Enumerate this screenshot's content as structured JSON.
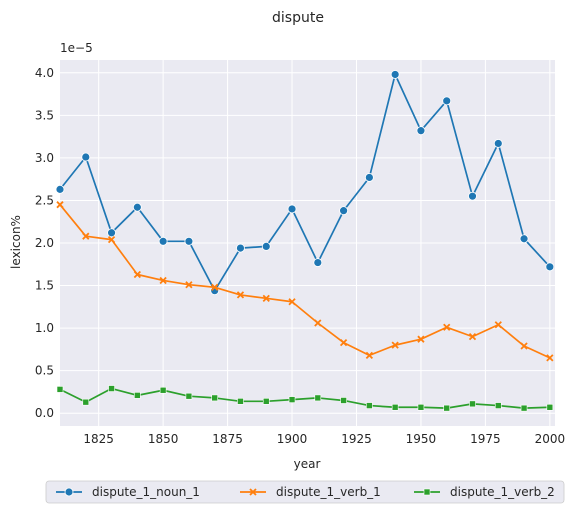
{
  "chart_data": {
    "type": "line",
    "title": "dispute",
    "xlabel": "year",
    "ylabel": "lexicon%",
    "y_scale_note": "1e−5",
    "xlim": [
      1810,
      2002
    ],
    "ylim": [
      -0.15,
      4.15
    ],
    "x_ticks": [
      1825,
      1850,
      1875,
      1900,
      1925,
      1950,
      1975,
      2000
    ],
    "y_ticks": [
      0.0,
      0.5,
      1.0,
      1.5,
      2.0,
      2.5,
      3.0,
      3.5,
      4.0
    ],
    "grid": true,
    "legend_position": "bottom",
    "x": [
      1810,
      1820,
      1830,
      1840,
      1850,
      1860,
      1870,
      1880,
      1890,
      1900,
      1910,
      1920,
      1930,
      1940,
      1950,
      1960,
      1970,
      1980,
      1990,
      2000
    ],
    "series": [
      {
        "name": "dispute_1_noun_1",
        "color": "#1f77b4",
        "marker": "circle",
        "values": [
          2.63,
          3.01,
          2.12,
          2.42,
          2.02,
          2.02,
          1.44,
          1.94,
          1.96,
          2.4,
          1.77,
          2.38,
          2.77,
          3.98,
          3.32,
          3.67,
          2.55,
          3.17,
          2.05,
          1.72
        ]
      },
      {
        "name": "dispute_1_verb_1",
        "color": "#ff7f0e",
        "marker": "x",
        "values": [
          2.45,
          2.08,
          2.04,
          1.63,
          1.56,
          1.51,
          1.48,
          1.39,
          1.35,
          1.31,
          1.06,
          0.83,
          0.68,
          0.8,
          0.87,
          1.01,
          0.9,
          1.04,
          0.79,
          0.65
        ]
      },
      {
        "name": "dispute_1_verb_2",
        "color": "#2ca02c",
        "marker": "square",
        "values": [
          0.28,
          0.13,
          0.29,
          0.21,
          0.27,
          0.2,
          0.18,
          0.14,
          0.14,
          0.16,
          0.18,
          0.15,
          0.09,
          0.07,
          0.07,
          0.06,
          0.11,
          0.09,
          0.06,
          0.07
        ]
      }
    ]
  }
}
